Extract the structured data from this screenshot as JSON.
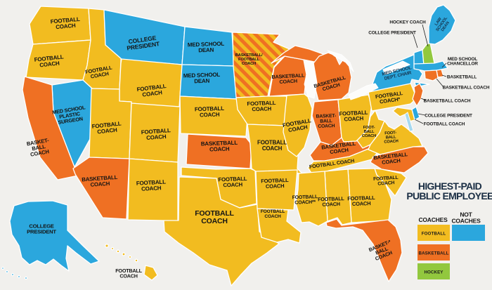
{
  "title": {
    "line1": "HIGHEST-PAID",
    "line2": "PUBLIC EMPLOYEE"
  },
  "legend": {
    "coaches_header": "COACHES",
    "not_coaches_header": "NOT\nCOACHES",
    "items": [
      {
        "id": "football",
        "label": "FOOTBALL",
        "color": "#F2BC20"
      },
      {
        "id": "basketball",
        "label": "BASKETBALL",
        "color": "#EF7023"
      },
      {
        "id": "hockey",
        "label": "HOCKEY",
        "color": "#92C83E"
      }
    ],
    "not_coaches_color": "#2BA7DD"
  },
  "categories": {
    "football": "#F2BC20",
    "basketball": "#EF7023",
    "hockey": "#92C83E",
    "not_coach": "#2BA7DD",
    "basketball_football": "stripes"
  },
  "states": [
    {
      "id": "WA",
      "category": "football",
      "label": "FOOTBALL\nCOACH"
    },
    {
      "id": "OR",
      "category": "football",
      "label": "FOOTBALL\nCOACH"
    },
    {
      "id": "ID",
      "category": "football",
      "label": "FOOTBALL\nCOACH"
    },
    {
      "id": "MT",
      "category": "not_coach",
      "label": "COLLEGE\nPRESIDENT"
    },
    {
      "id": "WY",
      "category": "football",
      "label": "FOOTBALL\nCOACH"
    },
    {
      "id": "NV",
      "category": "not_coach",
      "label": "MED SCHOOL\nPLASTIC\nSURGEON"
    },
    {
      "id": "UT",
      "category": "football",
      "label": "FOOTBALL\nCOACH"
    },
    {
      "id": "CA",
      "category": "basketball",
      "label": "BASKET-\nBALL\nCOACH"
    },
    {
      "id": "AZ",
      "category": "basketball",
      "label": "BASKETBALL\nCOACH"
    },
    {
      "id": "NM",
      "category": "football",
      "label": "FOOTBALL\nCOACH"
    },
    {
      "id": "CO",
      "category": "football",
      "label": "FOOTBALL\nCOACH"
    },
    {
      "id": "ND",
      "category": "not_coach",
      "label": "MED SCHOOL\nDEAN"
    },
    {
      "id": "SD",
      "category": "not_coach",
      "label": "MED SCHOOL\nDEAN"
    },
    {
      "id": "NE",
      "category": "football",
      "label": "FOOTBALL\nCOACH"
    },
    {
      "id": "KS",
      "category": "basketball",
      "label": "BASKETBALL\nCOACH"
    },
    {
      "id": "OK",
      "category": "football",
      "label": "FOOTBALL\nCOACH"
    },
    {
      "id": "TX",
      "category": "football",
      "label": "FOOTBALL\nCOACH"
    },
    {
      "id": "MN",
      "category": "basketball_football",
      "label": "BASKETBALL/\nFOOTBALL\nCOACH"
    },
    {
      "id": "IA",
      "category": "football",
      "label": "FOOTBALL\nCOACH"
    },
    {
      "id": "MO",
      "category": "football",
      "label": "FOOTBALL\nCOACH"
    },
    {
      "id": "AR",
      "category": "football",
      "label": "FOOTBALL\nCOACH"
    },
    {
      "id": "LA",
      "category": "football",
      "label": "FOOTBALL\nCOACH"
    },
    {
      "id": "WI",
      "category": "basketball",
      "label": "BASKETBALL\nCOACH"
    },
    {
      "id": "MI",
      "category": "basketball",
      "label": "BASKETBALL\nCOACH"
    },
    {
      "id": "IL",
      "category": "football",
      "label": "FOOTBALL\nCOACH"
    },
    {
      "id": "IN",
      "category": "basketball",
      "label": "BASKET-\nBALL\nCOACH"
    },
    {
      "id": "OH",
      "category": "football",
      "label": "FOOTBALL\nCOACH"
    },
    {
      "id": "KY",
      "category": "basketball",
      "label": "BASKETBALL\nCOACH"
    },
    {
      "id": "TN",
      "category": "football",
      "label": "FOOTBALL COACH"
    },
    {
      "id": "WV",
      "category": "football",
      "label": "FOOT-\nBALL\nCOACH"
    },
    {
      "id": "VA",
      "category": "football",
      "label": "FOOT-\nBALL\nCOACH"
    },
    {
      "id": "PA",
      "category": "football",
      "label": "FOOTBALL\nCOACH*"
    },
    {
      "id": "NC",
      "category": "basketball",
      "label": "BASKETBALL\nCOACH"
    },
    {
      "id": "SC",
      "category": "football",
      "label": "FOOTBALL\nCOACH"
    },
    {
      "id": "GA",
      "category": "football",
      "label": "FOOTBALL\nCOACH"
    },
    {
      "id": "AL",
      "category": "football",
      "label": "FOOTBALL\nCOACH"
    },
    {
      "id": "MS",
      "category": "football",
      "label": "FOOTBALL\nCOACH**"
    },
    {
      "id": "FL",
      "category": "basketball",
      "label": "BASKET-*\nBALL\nCOACH"
    },
    {
      "id": "NY",
      "category": "not_coach",
      "label": "MED SCHOOL\nDEPT. CHAIR"
    },
    {
      "id": "ME",
      "category": "not_coach",
      "label": "LAW\nSCHOOL\nDEAN"
    },
    {
      "id": "VT",
      "category": "not_coach",
      "label": ""
    },
    {
      "id": "NH",
      "category": "hockey",
      "label": ""
    },
    {
      "id": "MA",
      "category": "not_coach",
      "label": ""
    },
    {
      "id": "RI",
      "category": "basketball",
      "label": ""
    },
    {
      "id": "CT",
      "category": "basketball",
      "label": ""
    },
    {
      "id": "NJ",
      "category": "basketball",
      "label": ""
    },
    {
      "id": "DE",
      "category": "not_coach",
      "label": ""
    },
    {
      "id": "MD",
      "category": "football",
      "label": ""
    },
    {
      "id": "AK",
      "category": "not_coach",
      "label": "COLLEGE\nPRESIDENT"
    },
    {
      "id": "HI",
      "category": "football",
      "label": "FOOTBALL\nCOACH"
    }
  ],
  "callouts": [
    {
      "id": "NH",
      "text": "HOCKEY COACH"
    },
    {
      "id": "VT",
      "text": "COLLEGE PRESIDENT"
    },
    {
      "id": "MA",
      "text": "MED SCHOOL\nCHANCELLOR"
    },
    {
      "id": "RI",
      "text": "BASKETBALL"
    },
    {
      "id": "CT",
      "text": "BASKETBALL COACH"
    },
    {
      "id": "NJ",
      "text": "BASKETBALL COACH"
    },
    {
      "id": "DE",
      "text": "COLLEGE PRESIDENT"
    },
    {
      "id": "MD",
      "text": "FOOTBALL COACH"
    }
  ]
}
